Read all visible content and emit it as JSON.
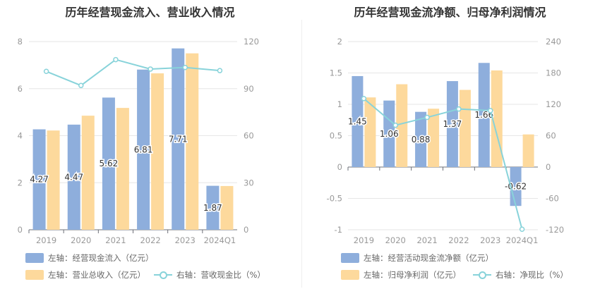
{
  "colors": {
    "blue": "#8eaedc",
    "orange": "#fdd99c",
    "line": "#88d3da",
    "axis": "#999999",
    "grid": "#e6e6e6"
  },
  "chart_data": [
    {
      "type": "bar",
      "title": "历年经营现金流入、营业收入情况",
      "categories": [
        "2019",
        "2020",
        "2021",
        "2022",
        "2023",
        "2024Q1"
      ],
      "series": [
        {
          "name": "左轴：经营现金流入（亿元）",
          "axis": "left",
          "type": "bar",
          "values": [
            4.27,
            4.47,
            5.62,
            6.81,
            7.71,
            1.87
          ],
          "labels": [
            "4.27",
            "4.47",
            "5.62",
            "6.81",
            "7.71",
            "1.87"
          ]
        },
        {
          "name": "左轴：营业总收入（亿元）",
          "axis": "left",
          "type": "bar",
          "values": [
            4.22,
            4.85,
            5.18,
            6.65,
            7.5,
            1.86
          ]
        },
        {
          "name": "右轴：营收现金比（%）",
          "axis": "right",
          "type": "line",
          "values": [
            101,
            92,
            108.5,
            102.5,
            103.5,
            101.5
          ]
        }
      ],
      "left_axis": {
        "ylim": [
          0,
          8
        ],
        "ticks": [
          "0",
          "2",
          "4",
          "6",
          "8"
        ]
      },
      "right_axis": {
        "ylim": [
          0,
          120
        ],
        "ticks": [
          "0",
          "30",
          "60",
          "90",
          "120"
        ]
      },
      "legend_position": "bottom"
    },
    {
      "type": "bar",
      "title": "历年经营现金流净额、归母净利润情况",
      "categories": [
        "2019",
        "2020",
        "2021",
        "2022",
        "2023",
        "2024Q1"
      ],
      "series": [
        {
          "name": "左轴：经营活动现金流净额（亿元）",
          "axis": "left",
          "type": "bar",
          "values": [
            1.45,
            1.06,
            0.88,
            1.37,
            1.66,
            -0.62
          ],
          "labels": [
            "1.45",
            "1.06",
            "0.88",
            "1.37",
            "1.66",
            "-0.62"
          ]
        },
        {
          "name": "左轴：归母净利润（亿元）",
          "axis": "left",
          "type": "bar",
          "values": [
            1.11,
            1.32,
            0.93,
            1.23,
            1.54,
            0.52
          ]
        },
        {
          "name": "右轴：净现比（%）",
          "axis": "right",
          "type": "line",
          "values": [
            131,
            80,
            95,
            111,
            108,
            -119
          ]
        }
      ],
      "left_axis": {
        "ylim": [
          -1,
          2
        ],
        "ticks": [
          "-1",
          "-0.5",
          "0",
          "0.5",
          "1",
          "1.5",
          "2"
        ]
      },
      "right_axis": {
        "ylim": [
          -120,
          240
        ],
        "ticks": [
          "-120",
          "-60",
          "0",
          "60",
          "120",
          "180",
          "240"
        ]
      },
      "legend_position": "bottom"
    }
  ]
}
